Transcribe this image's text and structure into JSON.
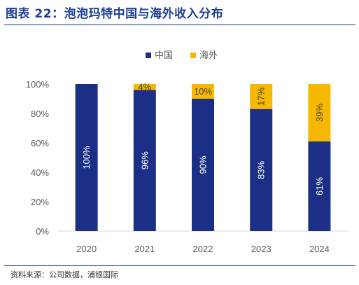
{
  "figure": {
    "title": "图表 22：泡泡玛特中国与海外收入分布",
    "source": "资料来源：公司数据，浦银国际"
  },
  "colors": {
    "title": "#1c3f94",
    "china": "#1a2f85",
    "overseas": "#f6b800",
    "axis_text": "#595959",
    "grid": "#d9d9d9"
  },
  "chart_data": {
    "type": "bar",
    "stacked": true,
    "categories": [
      "2020",
      "2021",
      "2022",
      "2023",
      "2024"
    ],
    "series": [
      {
        "name": "中国",
        "values": [
          100,
          96,
          90,
          83,
          61
        ],
        "labels": [
          "100%",
          "96%",
          "90%",
          "83%",
          "61%"
        ]
      },
      {
        "name": "海外",
        "values": [
          0,
          4,
          10,
          17,
          39
        ],
        "labels": [
          "",
          "4%",
          "10%",
          "17%",
          "39%"
        ]
      }
    ],
    "yticks": [
      "0%",
      "20%",
      "40%",
      "60%",
      "80%",
      "100%"
    ],
    "ylim": [
      0,
      100
    ],
    "legend_position": "top",
    "grid": false
  }
}
